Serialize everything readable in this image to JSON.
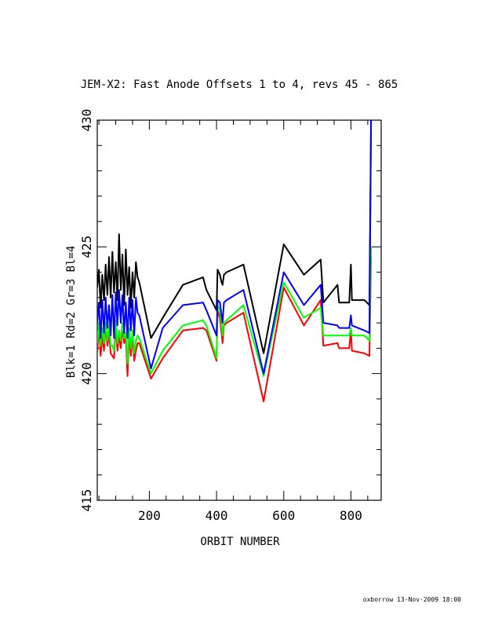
{
  "chart_data": {
    "type": "line",
    "title": "JEM-X2: Fast Anode Offsets 1 to 4, revs 45 - 865",
    "xlabel": "ORBIT NUMBER",
    "ylabel": "Blk=1 Rd=2 Gr=3 Bl=4",
    "xlim": [
      45,
      890
    ],
    "ylim": [
      415,
      430
    ],
    "x_ticks": [
      200,
      400,
      600,
      800
    ],
    "y_ticks": [
      415,
      420,
      425,
      430
    ],
    "grid": false,
    "legend": "none",
    "series": [
      {
        "color": "#000000",
        "points": [
          [
            45,
            423.4
          ],
          [
            50,
            424.1
          ],
          [
            55,
            422.6
          ],
          [
            60,
            423.9
          ],
          [
            65,
            422.9
          ],
          [
            70,
            424.3
          ],
          [
            75,
            423.1
          ],
          [
            80,
            424.6
          ],
          [
            85,
            423.0
          ],
          [
            90,
            424.8
          ],
          [
            95,
            423.2
          ],
          [
            100,
            424.4
          ],
          [
            105,
            422.9
          ],
          [
            110,
            425.5
          ],
          [
            115,
            423.3
          ],
          [
            120,
            424.7
          ],
          [
            125,
            422.7
          ],
          [
            130,
            424.9
          ],
          [
            135,
            423.1
          ],
          [
            140,
            424.2
          ],
          [
            145,
            422.6
          ],
          [
            150,
            424.0
          ],
          [
            155,
            423.0
          ],
          [
            160,
            424.4
          ],
          [
            165,
            423.8
          ],
          [
            170,
            423.6
          ],
          [
            205,
            421.4
          ],
          [
            240,
            422.2
          ],
          [
            300,
            423.5
          ],
          [
            360,
            423.8
          ],
          [
            370,
            423.3
          ],
          [
            400,
            422.5
          ],
          [
            403,
            424.1
          ],
          [
            410,
            423.9
          ],
          [
            415,
            423.6
          ],
          [
            418,
            423.5
          ],
          [
            422,
            423.9
          ],
          [
            430,
            424.0
          ],
          [
            480,
            424.3
          ],
          [
            540,
            420.8
          ],
          [
            600,
            425.1
          ],
          [
            660,
            423.9
          ],
          [
            710,
            424.5
          ],
          [
            718,
            422.8
          ],
          [
            760,
            423.5
          ],
          [
            765,
            422.8
          ],
          [
            795,
            422.8
          ],
          [
            800,
            424.3
          ],
          [
            803,
            422.9
          ],
          [
            840,
            422.9
          ],
          [
            855,
            422.7
          ],
          [
            860,
            430.0
          ]
        ]
      },
      {
        "color": "#ff0000",
        "points": [
          [
            45,
            420.9
          ],
          [
            50,
            421.8
          ],
          [
            55,
            420.7
          ],
          [
            60,
            421.5
          ],
          [
            65,
            420.9
          ],
          [
            70,
            421.9
          ],
          [
            75,
            421.1
          ],
          [
            80,
            421.6
          ],
          [
            85,
            420.8
          ],
          [
            90,
            420.7
          ],
          [
            95,
            420.6
          ],
          [
            100,
            421.9
          ],
          [
            105,
            420.9
          ],
          [
            110,
            421.5
          ],
          [
            115,
            421.0
          ],
          [
            120,
            421.8
          ],
          [
            125,
            421.2
          ],
          [
            130,
            421.4
          ],
          [
            135,
            419.9
          ],
          [
            140,
            421.6
          ],
          [
            145,
            420.7
          ],
          [
            150,
            421.5
          ],
          [
            155,
            420.5
          ],
          [
            160,
            420.9
          ],
          [
            165,
            421.2
          ],
          [
            170,
            421.2
          ],
          [
            205,
            419.8
          ],
          [
            240,
            420.6
          ],
          [
            300,
            421.7
          ],
          [
            360,
            421.8
          ],
          [
            370,
            421.7
          ],
          [
            400,
            420.5
          ],
          [
            403,
            422.5
          ],
          [
            410,
            422.2
          ],
          [
            415,
            421.6
          ],
          [
            418,
            421.2
          ],
          [
            422,
            421.9
          ],
          [
            430,
            422.0
          ],
          [
            480,
            422.4
          ],
          [
            540,
            418.9
          ],
          [
            600,
            423.4
          ],
          [
            660,
            421.9
          ],
          [
            710,
            422.9
          ],
          [
            718,
            421.1
          ],
          [
            760,
            421.2
          ],
          [
            765,
            421.0
          ],
          [
            795,
            421.0
          ],
          [
            800,
            421.7
          ],
          [
            803,
            420.9
          ],
          [
            840,
            420.8
          ],
          [
            855,
            420.7
          ],
          [
            860,
            424.6
          ]
        ]
      },
      {
        "color": "#00ff00",
        "points": [
          [
            45,
            421.2
          ],
          [
            50,
            422.0
          ],
          [
            55,
            421.1
          ],
          [
            60,
            421.8
          ],
          [
            65,
            421.2
          ],
          [
            70,
            422.0
          ],
          [
            75,
            421.3
          ],
          [
            80,
            421.9
          ],
          [
            85,
            421.1
          ],
          [
            90,
            421.1
          ],
          [
            95,
            420.9
          ],
          [
            100,
            422.1
          ],
          [
            105,
            421.2
          ],
          [
            110,
            421.7
          ],
          [
            115,
            421.3
          ],
          [
            120,
            422.0
          ],
          [
            125,
            421.4
          ],
          [
            130,
            421.6
          ],
          [
            135,
            420.4
          ],
          [
            140,
            421.8
          ],
          [
            145,
            421.0
          ],
          [
            150,
            421.7
          ],
          [
            155,
            420.8
          ],
          [
            160,
            421.3
          ],
          [
            165,
            421.5
          ],
          [
            170,
            421.4
          ],
          [
            205,
            420.0
          ],
          [
            240,
            420.9
          ],
          [
            300,
            421.9
          ],
          [
            360,
            422.1
          ],
          [
            370,
            421.9
          ],
          [
            400,
            420.6
          ],
          [
            403,
            422.7
          ],
          [
            410,
            422.5
          ],
          [
            415,
            421.9
          ],
          [
            418,
            421.5
          ],
          [
            422,
            422.0
          ],
          [
            430,
            422.1
          ],
          [
            480,
            422.7
          ],
          [
            540,
            419.9
          ],
          [
            600,
            423.6
          ],
          [
            660,
            422.2
          ],
          [
            710,
            422.6
          ],
          [
            718,
            421.5
          ],
          [
            760,
            421.5
          ],
          [
            765,
            421.5
          ],
          [
            795,
            421.5
          ],
          [
            800,
            421.8
          ],
          [
            803,
            421.5
          ],
          [
            840,
            421.5
          ],
          [
            855,
            421.3
          ],
          [
            860,
            425.0
          ]
        ]
      },
      {
        "color": "#0000ff",
        "points": [
          [
            45,
            422.0
          ],
          [
            50,
            422.8
          ],
          [
            55,
            421.4
          ],
          [
            60,
            422.9
          ],
          [
            65,
            421.6
          ],
          [
            70,
            423.0
          ],
          [
            75,
            421.8
          ],
          [
            80,
            422.7
          ],
          [
            85,
            421.5
          ],
          [
            90,
            423.1
          ],
          [
            95,
            421.4
          ],
          [
            100,
            423.2
          ],
          [
            105,
            421.9
          ],
          [
            110,
            423.3
          ],
          [
            115,
            422.0
          ],
          [
            120,
            423.1
          ],
          [
            125,
            421.6
          ],
          [
            130,
            422.8
          ],
          [
            135,
            421.4
          ],
          [
            140,
            423.0
          ],
          [
            145,
            421.7
          ],
          [
            150,
            422.9
          ],
          [
            155,
            421.5
          ],
          [
            160,
            423.0
          ],
          [
            165,
            422.4
          ],
          [
            170,
            422.3
          ],
          [
            205,
            420.2
          ],
          [
            240,
            421.8
          ],
          [
            300,
            422.7
          ],
          [
            360,
            422.8
          ],
          [
            370,
            422.5
          ],
          [
            400,
            421.5
          ],
          [
            403,
            422.9
          ],
          [
            410,
            422.8
          ],
          [
            415,
            422.3
          ],
          [
            418,
            422.0
          ],
          [
            422,
            422.8
          ],
          [
            430,
            422.9
          ],
          [
            480,
            423.3
          ],
          [
            540,
            420.0
          ],
          [
            600,
            424.0
          ],
          [
            660,
            422.7
          ],
          [
            710,
            423.5
          ],
          [
            718,
            422.0
          ],
          [
            760,
            421.9
          ],
          [
            765,
            421.8
          ],
          [
            795,
            421.8
          ],
          [
            800,
            422.3
          ],
          [
            803,
            421.9
          ],
          [
            840,
            421.7
          ],
          [
            855,
            421.6
          ],
          [
            860,
            430.0
          ]
        ]
      }
    ]
  },
  "footer": "oxborrow 13-Nov-2009 18:00"
}
